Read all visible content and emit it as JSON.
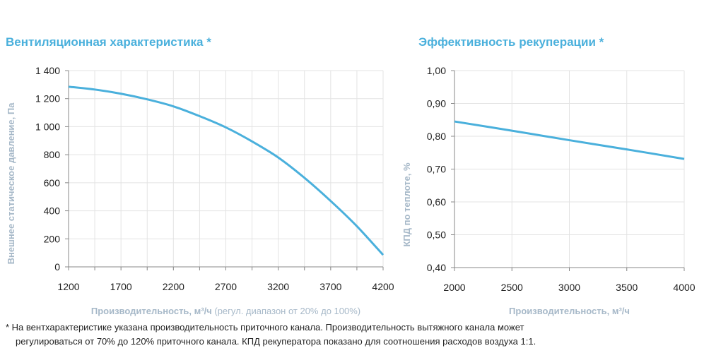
{
  "chart_data": [
    {
      "type": "line",
      "title": "Вентиляционная характеристика *",
      "xlabel": "Производительность, м³/ч",
      "xlabel_note": "(регул. диапазон от 20% до 100%)",
      "ylabel": "Внешнее статическое давление, Па",
      "xlim": [
        1200,
        4200
      ],
      "ylim": [
        0,
        1400
      ],
      "grid": true,
      "xticks": [
        "1200",
        "1700",
        "2200",
        "2700",
        "3200",
        "3700",
        "4200"
      ],
      "yticks": [
        "0",
        "200",
        "400",
        "600",
        "800",
        "1 000",
        "1 200",
        "1 400"
      ],
      "x": [
        1200,
        1450,
        1700,
        1950,
        2200,
        2450,
        2700,
        2950,
        3200,
        3450,
        3700,
        3950,
        4200
      ],
      "y": [
        1285,
        1265,
        1235,
        1195,
        1145,
        1075,
        995,
        895,
        780,
        635,
        470,
        290,
        85
      ],
      "color": "#4ab0dc"
    },
    {
      "type": "line",
      "title": "Эффективность рекуперации *",
      "xlabel": "Производительность, м³/ч",
      "ylabel": "КПД по теплоте, %",
      "xlim": [
        2000,
        4000
      ],
      "ylim": [
        0.4,
        1.0
      ],
      "grid": true,
      "xticks": [
        "2000",
        "2500",
        "3000",
        "3500",
        "4000"
      ],
      "yticks": [
        "0,40",
        "0,50",
        "0,60",
        "0,70",
        "0,80",
        "0,90",
        "1,00"
      ],
      "x": [
        2000,
        2500,
        3000,
        3500,
        4000
      ],
      "y": [
        0.845,
        0.817,
        0.788,
        0.76,
        0.731
      ],
      "color": "#4ab0dc"
    }
  ],
  "footnote": {
    "line1": "* На вентхарактеристике указана производительность приточного канала. Производительность вытяжного канала может",
    "line2": "регулироваться от 70% до 120% приточного канала. КПД рекуператора показано для соотношения расходов воздуха 1:1."
  }
}
